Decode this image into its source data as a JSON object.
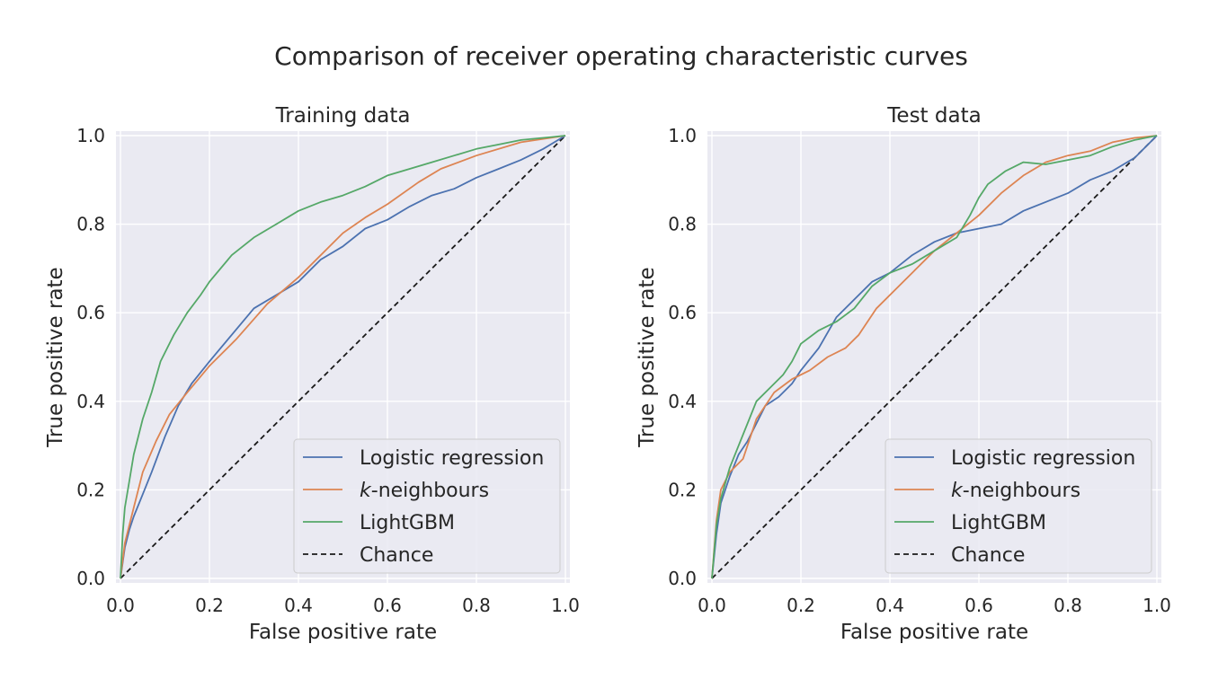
{
  "suptitle": "Comparison of receiver operating characteristic curves",
  "chart_data": [
    {
      "type": "line",
      "title": "Training data",
      "xlabel": "False positive rate",
      "ylabel": "True positive rate",
      "xlim": [
        0,
        1
      ],
      "ylim": [
        0,
        1
      ],
      "xticks": [
        "0.0",
        "0.2",
        "0.4",
        "0.6",
        "0.8",
        "1.0"
      ],
      "yticks": [
        "0.0",
        "0.2",
        "0.4",
        "0.6",
        "0.8",
        "1.0"
      ],
      "grid": true,
      "legend": "lower-right",
      "series": [
        {
          "name": "Logistic regression",
          "color": "#4c72b0",
          "dash": false,
          "x": [
            0,
            0.01,
            0.02,
            0.03,
            0.05,
            0.07,
            0.1,
            0.13,
            0.16,
            0.2,
            0.25,
            0.3,
            0.35,
            0.4,
            0.45,
            0.5,
            0.55,
            0.6,
            0.65,
            0.7,
            0.75,
            0.8,
            0.85,
            0.9,
            0.95,
            1.0
          ],
          "y": [
            0,
            0.07,
            0.11,
            0.14,
            0.19,
            0.24,
            0.32,
            0.39,
            0.44,
            0.49,
            0.55,
            0.61,
            0.64,
            0.67,
            0.72,
            0.75,
            0.79,
            0.81,
            0.84,
            0.865,
            0.88,
            0.905,
            0.925,
            0.945,
            0.97,
            1.0
          ]
        },
        {
          "name": "k-neighbours",
          "color": "#dd8452",
          "dash": false,
          "x": [
            0,
            0.01,
            0.03,
            0.05,
            0.08,
            0.11,
            0.15,
            0.2,
            0.26,
            0.33,
            0.4,
            0.5,
            0.55,
            0.6,
            0.67,
            0.72,
            0.8,
            0.9,
            1.0
          ],
          "y": [
            0,
            0.08,
            0.16,
            0.24,
            0.31,
            0.37,
            0.42,
            0.48,
            0.54,
            0.62,
            0.68,
            0.78,
            0.815,
            0.845,
            0.895,
            0.925,
            0.955,
            0.985,
            1.0
          ]
        },
        {
          "name": "LightGBM",
          "color": "#55a868",
          "dash": false,
          "x": [
            0,
            0.005,
            0.01,
            0.02,
            0.03,
            0.05,
            0.07,
            0.09,
            0.12,
            0.15,
            0.18,
            0.2,
            0.25,
            0.3,
            0.35,
            0.4,
            0.45,
            0.5,
            0.55,
            0.6,
            0.65,
            0.7,
            0.75,
            0.8,
            0.85,
            0.9,
            0.95,
            1.0
          ],
          "y": [
            0,
            0.1,
            0.16,
            0.22,
            0.28,
            0.36,
            0.42,
            0.49,
            0.55,
            0.6,
            0.64,
            0.67,
            0.73,
            0.77,
            0.8,
            0.83,
            0.85,
            0.865,
            0.885,
            0.91,
            0.925,
            0.94,
            0.955,
            0.97,
            0.98,
            0.99,
            0.995,
            1.0
          ]
        },
        {
          "name": "Chance",
          "color": "#1a1a1a",
          "dash": true,
          "x": [
            0,
            1
          ],
          "y": [
            0,
            1
          ]
        }
      ]
    },
    {
      "type": "line",
      "title": "Test data",
      "xlabel": "False positive rate",
      "ylabel": "True positive rate",
      "xlim": [
        0,
        1
      ],
      "ylim": [
        0,
        1
      ],
      "xticks": [
        "0.0",
        "0.2",
        "0.4",
        "0.6",
        "0.8",
        "1.0"
      ],
      "yticks": [
        "0.0",
        "0.2",
        "0.4",
        "0.6",
        "0.8",
        "1.0"
      ],
      "grid": true,
      "legend": "lower-right",
      "series": [
        {
          "name": "Logistic regression",
          "color": "#4c72b0",
          "dash": false,
          "x": [
            0,
            0.01,
            0.02,
            0.04,
            0.06,
            0.08,
            0.1,
            0.12,
            0.15,
            0.18,
            0.2,
            0.24,
            0.28,
            0.32,
            0.36,
            0.4,
            0.45,
            0.5,
            0.55,
            0.6,
            0.65,
            0.7,
            0.75,
            0.8,
            0.85,
            0.9,
            0.95,
            1.0
          ],
          "y": [
            0,
            0.1,
            0.17,
            0.23,
            0.28,
            0.31,
            0.35,
            0.39,
            0.41,
            0.44,
            0.47,
            0.52,
            0.59,
            0.63,
            0.67,
            0.69,
            0.73,
            0.76,
            0.78,
            0.79,
            0.8,
            0.83,
            0.85,
            0.87,
            0.9,
            0.92,
            0.95,
            1.0
          ]
        },
        {
          "name": "k-neighbours",
          "color": "#dd8452",
          "dash": false,
          "x": [
            0,
            0.01,
            0.02,
            0.04,
            0.07,
            0.1,
            0.14,
            0.18,
            0.22,
            0.26,
            0.3,
            0.33,
            0.37,
            0.42,
            0.46,
            0.5,
            0.55,
            0.6,
            0.65,
            0.7,
            0.75,
            0.8,
            0.85,
            0.9,
            0.95,
            1.0
          ],
          "y": [
            0,
            0.13,
            0.2,
            0.24,
            0.27,
            0.36,
            0.42,
            0.45,
            0.47,
            0.5,
            0.52,
            0.55,
            0.61,
            0.66,
            0.7,
            0.74,
            0.78,
            0.82,
            0.87,
            0.91,
            0.94,
            0.955,
            0.965,
            0.985,
            0.995,
            1.0
          ]
        },
        {
          "name": "LightGBM",
          "color": "#55a868",
          "dash": false,
          "x": [
            0,
            0.01,
            0.02,
            0.04,
            0.06,
            0.08,
            0.1,
            0.13,
            0.16,
            0.18,
            0.2,
            0.24,
            0.28,
            0.32,
            0.36,
            0.4,
            0.45,
            0.5,
            0.55,
            0.58,
            0.6,
            0.62,
            0.66,
            0.7,
            0.75,
            0.8,
            0.85,
            0.9,
            0.95,
            1.0
          ],
          "y": [
            0,
            0.12,
            0.18,
            0.25,
            0.3,
            0.35,
            0.4,
            0.43,
            0.46,
            0.49,
            0.53,
            0.56,
            0.58,
            0.61,
            0.66,
            0.69,
            0.71,
            0.74,
            0.77,
            0.82,
            0.86,
            0.89,
            0.92,
            0.94,
            0.935,
            0.945,
            0.955,
            0.975,
            0.99,
            1.0
          ]
        },
        {
          "name": "Chance",
          "color": "#1a1a1a",
          "dash": true,
          "x": [
            0,
            1
          ],
          "y": [
            0,
            1
          ]
        }
      ]
    }
  ]
}
